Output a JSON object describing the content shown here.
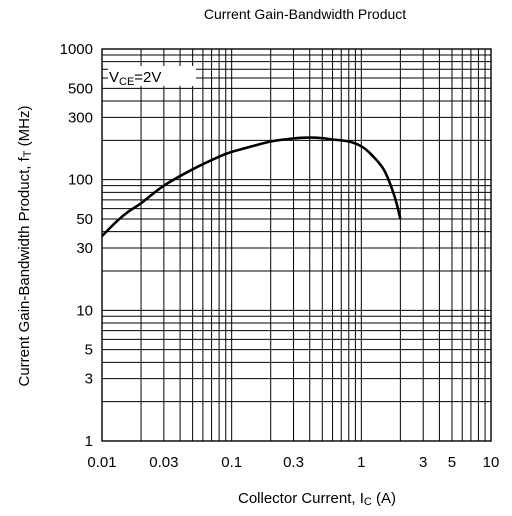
{
  "chart_data": {
    "type": "line",
    "title": "Current Gain-Bandwidth Product",
    "xlabel": {
      "main": "Collector Current, I",
      "sub": "C",
      "unit": " (A)"
    },
    "ylabel": {
      "main": "Current Gain-Bandwidth Product, f",
      "sub": "T",
      "unit": " (MHz)"
    },
    "x_scale": "log",
    "y_scale": "log",
    "xlim": [
      0.01,
      10
    ],
    "ylim": [
      1,
      1000
    ],
    "grid": true,
    "x_ticks": [
      {
        "value": 0.01,
        "label": "0.01"
      },
      {
        "value": 0.03,
        "label": "0.03"
      },
      {
        "value": 0.1,
        "label": "0.1"
      },
      {
        "value": 0.3,
        "label": "0.3"
      },
      {
        "value": 1,
        "label": "1"
      },
      {
        "value": 3,
        "label": "3"
      },
      {
        "value": 5,
        "label": "5"
      },
      {
        "value": 10,
        "label": "10"
      }
    ],
    "y_ticks": [
      {
        "value": 1,
        "label": "1"
      },
      {
        "value": 3,
        "label": "3"
      },
      {
        "value": 5,
        "label": "5"
      },
      {
        "value": 10,
        "label": "10"
      },
      {
        "value": 30,
        "label": "30"
      },
      {
        "value": 50,
        "label": "50"
      },
      {
        "value": 100,
        "label": "100"
      },
      {
        "value": 300,
        "label": "300"
      },
      {
        "value": 500,
        "label": "500"
      },
      {
        "value": 1000,
        "label": "1000"
      }
    ],
    "annotation": {
      "prefix": "V",
      "sub": "CE",
      "suffix": "=2V"
    },
    "series": [
      {
        "x": [
          0.01,
          0.013,
          0.016,
          0.02,
          0.03,
          0.05,
          0.08,
          0.1,
          0.15,
          0.2,
          0.3,
          0.4,
          0.5,
          0.6,
          0.8,
          1.0,
          1.2,
          1.5,
          1.8,
          2.0
        ],
        "y": [
          37,
          48,
          57,
          66,
          90,
          120,
          150,
          163,
          182,
          196,
          207,
          210,
          208,
          203,
          196,
          180,
          155,
          118,
          75,
          50
        ]
      }
    ]
  }
}
